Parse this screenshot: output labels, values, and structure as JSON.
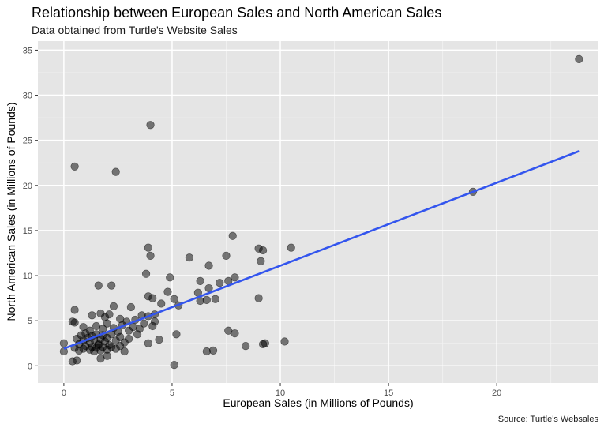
{
  "chart_data": {
    "type": "scatter",
    "title": "Relationship between European Sales and North American Sales",
    "subtitle": "Data obtained from Turtle's Website Sales",
    "caption": "Source: Turtle's Websales",
    "xlabel": "European Sales (in Millions of Pounds)",
    "ylabel": "North American Sales (in Millions of Pounds)",
    "xlim": [
      -1.2,
      24.7
    ],
    "ylim": [
      -1.9,
      36.0
    ],
    "x_ticks": [
      0,
      5,
      10,
      15,
      20
    ],
    "x_tick_labels": [
      "0",
      "5",
      "10",
      "15",
      "20"
    ],
    "y_ticks": [
      0,
      5,
      10,
      15,
      20,
      25,
      30,
      35
    ],
    "y_tick_labels": [
      "0",
      "5",
      "10",
      "15",
      "20",
      "25",
      "30",
      "35"
    ],
    "grid": true,
    "background": "#e5e5e5",
    "point_color": "#000000",
    "point_opacity": 0.5,
    "trend_line": {
      "type": "linear",
      "color": "#3355ee",
      "x": [
        0.0,
        23.8
      ],
      "y": [
        1.9,
        23.8
      ]
    },
    "points": [
      {
        "x": 23.8,
        "y": 34.0
      },
      {
        "x": 18.9,
        "y": 19.3
      },
      {
        "x": 4.0,
        "y": 26.7
      },
      {
        "x": 0.5,
        "y": 22.1
      },
      {
        "x": 2.4,
        "y": 21.5
      },
      {
        "x": 7.8,
        "y": 14.4
      },
      {
        "x": 3.9,
        "y": 13.1
      },
      {
        "x": 4.0,
        "y": 12.2
      },
      {
        "x": 5.8,
        "y": 12.0
      },
      {
        "x": 7.5,
        "y": 12.2
      },
      {
        "x": 9.0,
        "y": 13.0
      },
      {
        "x": 9.2,
        "y": 12.8
      },
      {
        "x": 10.5,
        "y": 13.1
      },
      {
        "x": 9.1,
        "y": 11.6
      },
      {
        "x": 6.7,
        "y": 11.1
      },
      {
        "x": 3.8,
        "y": 10.2
      },
      {
        "x": 4.9,
        "y": 9.8
      },
      {
        "x": 6.3,
        "y": 9.4
      },
      {
        "x": 7.2,
        "y": 9.2
      },
      {
        "x": 7.6,
        "y": 9.4
      },
      {
        "x": 7.9,
        "y": 9.8
      },
      {
        "x": 1.6,
        "y": 8.9
      },
      {
        "x": 2.2,
        "y": 8.9
      },
      {
        "x": 6.7,
        "y": 8.6
      },
      {
        "x": 6.2,
        "y": 8.1
      },
      {
        "x": 4.8,
        "y": 8.2
      },
      {
        "x": 3.9,
        "y": 7.7
      },
      {
        "x": 4.1,
        "y": 7.5
      },
      {
        "x": 5.1,
        "y": 7.4
      },
      {
        "x": 6.3,
        "y": 7.2
      },
      {
        "x": 6.6,
        "y": 7.3
      },
      {
        "x": 7.0,
        "y": 7.4
      },
      {
        "x": 9.0,
        "y": 7.5
      },
      {
        "x": 5.3,
        "y": 6.7
      },
      {
        "x": 4.5,
        "y": 6.9
      },
      {
        "x": 3.1,
        "y": 6.5
      },
      {
        "x": 2.3,
        "y": 6.6
      },
      {
        "x": 0.5,
        "y": 6.2
      },
      {
        "x": 7.6,
        "y": 3.9
      },
      {
        "x": 7.9,
        "y": 3.6
      },
      {
        "x": 5.2,
        "y": 3.5
      },
      {
        "x": 4.4,
        "y": 2.9
      },
      {
        "x": 3.9,
        "y": 2.5
      },
      {
        "x": 9.2,
        "y": 2.4
      },
      {
        "x": 9.3,
        "y": 2.5
      },
      {
        "x": 10.2,
        "y": 2.7
      },
      {
        "x": 8.4,
        "y": 2.2
      },
      {
        "x": 6.6,
        "y": 1.6
      },
      {
        "x": 6.9,
        "y": 1.7
      },
      {
        "x": 5.1,
        "y": 0.1
      },
      {
        "x": 0.0,
        "y": 1.6
      },
      {
        "x": 0.0,
        "y": 2.5
      },
      {
        "x": 0.4,
        "y": 0.5
      },
      {
        "x": 0.6,
        "y": 0.6
      },
      {
        "x": 0.7,
        "y": 1.7
      },
      {
        "x": 1.7,
        "y": 0.8
      },
      {
        "x": 2.0,
        "y": 1.1
      },
      {
        "x": 2.8,
        "y": 1.6
      },
      {
        "x": 0.4,
        "y": 4.9
      },
      {
        "x": 0.5,
        "y": 4.8
      },
      {
        "x": 1.3,
        "y": 5.6
      },
      {
        "x": 1.7,
        "y": 5.8
      },
      {
        "x": 1.9,
        "y": 5.4
      },
      {
        "x": 2.1,
        "y": 5.7
      },
      {
        "x": 2.6,
        "y": 5.2
      },
      {
        "x": 2.9,
        "y": 4.9
      },
      {
        "x": 3.3,
        "y": 5.1
      },
      {
        "x": 3.6,
        "y": 5.6
      },
      {
        "x": 3.9,
        "y": 5.5
      },
      {
        "x": 4.2,
        "y": 5.7
      },
      {
        "x": 3.7,
        "y": 4.7
      },
      {
        "x": 4.1,
        "y": 4.4
      },
      {
        "x": 4.2,
        "y": 4.9
      },
      {
        "x": 0.9,
        "y": 4.3
      },
      {
        "x": 1.2,
        "y": 3.9
      },
      {
        "x": 1.5,
        "y": 4.4
      },
      {
        "x": 1.8,
        "y": 4.1
      },
      {
        "x": 2.0,
        "y": 4.7
      },
      {
        "x": 2.3,
        "y": 4.2
      },
      {
        "x": 2.5,
        "y": 3.8
      },
      {
        "x": 2.7,
        "y": 4.5
      },
      {
        "x": 3.0,
        "y": 3.9
      },
      {
        "x": 3.2,
        "y": 4.3
      },
      {
        "x": 3.5,
        "y": 4.1
      },
      {
        "x": 3.4,
        "y": 3.5
      },
      {
        "x": 0.6,
        "y": 3.0
      },
      {
        "x": 0.8,
        "y": 3.4
      },
      {
        "x": 0.9,
        "y": 2.8
      },
      {
        "x": 1.0,
        "y": 3.6
      },
      {
        "x": 1.1,
        "y": 3.1
      },
      {
        "x": 1.2,
        "y": 2.6
      },
      {
        "x": 1.3,
        "y": 3.3
      },
      {
        "x": 1.4,
        "y": 2.9
      },
      {
        "x": 1.5,
        "y": 3.5
      },
      {
        "x": 1.6,
        "y": 2.4
      },
      {
        "x": 1.7,
        "y": 3.0
      },
      {
        "x": 1.8,
        "y": 3.4
      },
      {
        "x": 1.9,
        "y": 2.7
      },
      {
        "x": 2.0,
        "y": 3.1
      },
      {
        "x": 2.1,
        "y": 2.3
      },
      {
        "x": 2.2,
        "y": 3.5
      },
      {
        "x": 2.4,
        "y": 2.8
      },
      {
        "x": 2.6,
        "y": 3.2
      },
      {
        "x": 2.8,
        "y": 2.6
      },
      {
        "x": 3.0,
        "y": 3.0
      },
      {
        "x": 0.5,
        "y": 2.0
      },
      {
        "x": 0.7,
        "y": 2.4
      },
      {
        "x": 0.9,
        "y": 1.9
      },
      {
        "x": 1.0,
        "y": 2.2
      },
      {
        "x": 1.2,
        "y": 1.8
      },
      {
        "x": 1.3,
        "y": 2.1
      },
      {
        "x": 1.4,
        "y": 1.6
      },
      {
        "x": 1.5,
        "y": 2.0
      },
      {
        "x": 1.6,
        "y": 2.3
      },
      {
        "x": 1.7,
        "y": 1.7
      },
      {
        "x": 1.8,
        "y": 2.1
      },
      {
        "x": 2.0,
        "y": 1.8
      },
      {
        "x": 2.2,
        "y": 2.1
      },
      {
        "x": 2.4,
        "y": 1.9
      },
      {
        "x": 2.6,
        "y": 2.2
      }
    ]
  }
}
